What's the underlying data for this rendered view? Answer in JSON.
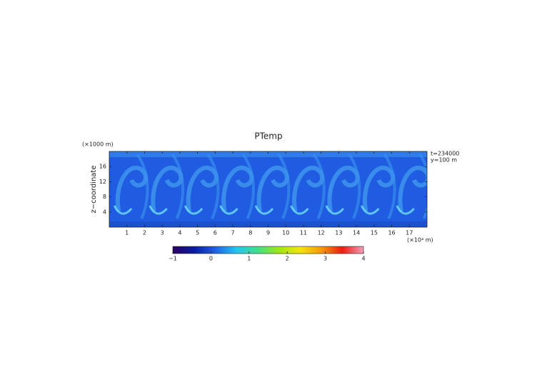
{
  "chart_data": {
    "type": "heatmap",
    "title": "PTemp",
    "ylabel": "z−coordinate",
    "y_unit": "(×1000 m)",
    "x_unit": "(×10⁴ m)",
    "annotations": [
      "t=234000",
      "y=100 m"
    ],
    "xlim": [
      0,
      18
    ],
    "xticks": [
      1,
      2,
      3,
      4,
      5,
      6,
      7,
      8,
      9,
      10,
      11,
      12,
      13,
      14,
      15,
      16,
      17
    ],
    "ylim": [
      0,
      20
    ],
    "yticks": [
      4,
      8,
      12,
      16
    ],
    "colorbar": {
      "lim": [
        -1,
        4
      ],
      "ticks": [
        {
          "value": -1,
          "label": "−1"
        },
        0,
        1,
        2,
        3,
        4
      ],
      "colors": [
        "#2a0060",
        "#0a1aa0",
        "#1f5fe6",
        "#22c6f0",
        "#3ee08a",
        "#9ee614",
        "#f2e60a",
        "#f59a0a",
        "#ee1c12",
        "#f2a0b8"
      ]
    }
  }
}
